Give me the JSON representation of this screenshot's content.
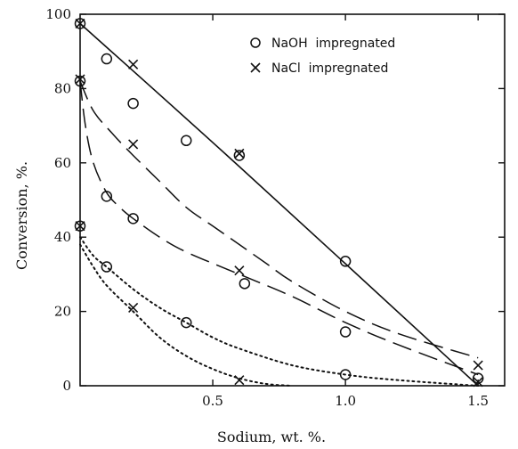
{
  "chart_data": {
    "type": "scatter",
    "title": "",
    "xlabel": "Sodium, wt. %.",
    "ylabel": "Conversion, %.",
    "xlim": [
      0,
      1.6
    ],
    "ylim": [
      0,
      100
    ],
    "xticks": [
      {
        "value": 0.5,
        "label": "0.5"
      },
      {
        "value": 1.0,
        "label": "1.0"
      },
      {
        "value": 1.5,
        "label": "1.5"
      }
    ],
    "yticks": [
      {
        "value": 0,
        "label": "0"
      },
      {
        "value": 20,
        "label": "20"
      },
      {
        "value": 40,
        "label": "40"
      },
      {
        "value": 60,
        "label": "60"
      },
      {
        "value": 80,
        "label": "80"
      },
      {
        "value": 100,
        "label": "100"
      }
    ],
    "grid": false,
    "legend_position": "top-right",
    "legend": [
      {
        "marker": "circle",
        "label": "NaOH  impregnated"
      },
      {
        "marker": "x",
        "label": "NaCl  impregnated"
      }
    ],
    "series": [
      {
        "marker": "circle",
        "points": [
          [
            0.0,
            97.5
          ],
          [
            0.1,
            88
          ],
          [
            0.2,
            76
          ],
          [
            0.4,
            66
          ],
          [
            0.6,
            62
          ],
          [
            1.0,
            33.5
          ],
          [
            1.5,
            2
          ],
          [
            0.1,
            51
          ],
          [
            0.2,
            45
          ],
          [
            0.62,
            27.5
          ],
          [
            1.0,
            14.5
          ],
          [
            0.1,
            32
          ],
          [
            0.4,
            17
          ],
          [
            1.0,
            3
          ],
          [
            0.0,
            82
          ],
          [
            0.0,
            43
          ]
        ]
      },
      {
        "marker": "x",
        "points": [
          [
            0.0,
            97.5
          ],
          [
            0.2,
            86.5
          ],
          [
            0.6,
            62.5
          ],
          [
            1.5,
            5.5
          ],
          [
            0.2,
            65
          ],
          [
            0.6,
            31
          ],
          [
            1.5,
            1
          ],
          [
            0.2,
            21
          ],
          [
            0.6,
            1.5
          ],
          [
            0.0,
            82.5
          ],
          [
            0.0,
            43
          ]
        ]
      }
    ],
    "curves": [
      {
        "style": "solid",
        "points": [
          [
            0,
            97.5
          ],
          [
            0.6,
            59
          ],
          [
            1.5,
            0
          ]
        ]
      },
      {
        "style": "dashed",
        "points": [
          [
            0,
            82
          ],
          [
            0.05,
            74
          ],
          [
            0.12,
            68
          ],
          [
            0.2,
            62
          ],
          [
            0.3,
            55
          ],
          [
            0.4,
            48
          ],
          [
            0.5,
            43
          ],
          [
            0.6,
            38
          ],
          [
            0.7,
            33
          ],
          [
            0.8,
            28
          ],
          [
            1.0,
            20
          ],
          [
            1.2,
            14
          ],
          [
            1.5,
            7.5
          ]
        ]
      },
      {
        "style": "dashed",
        "points": [
          [
            0,
            82
          ],
          [
            0.02,
            70
          ],
          [
            0.05,
            60
          ],
          [
            0.1,
            52
          ],
          [
            0.15,
            48
          ],
          [
            0.2,
            45
          ],
          [
            0.3,
            40
          ],
          [
            0.4,
            36
          ],
          [
            0.6,
            30
          ],
          [
            0.8,
            24
          ],
          [
            1.0,
            17
          ],
          [
            1.2,
            11
          ],
          [
            1.5,
            3
          ]
        ]
      },
      {
        "style": "dotted",
        "points": [
          [
            0,
            40
          ],
          [
            0.05,
            35
          ],
          [
            0.1,
            32
          ],
          [
            0.2,
            26
          ],
          [
            0.3,
            21
          ],
          [
            0.4,
            17
          ],
          [
            0.5,
            13
          ],
          [
            0.6,
            10
          ],
          [
            0.8,
            5.5
          ],
          [
            1.0,
            3
          ],
          [
            1.2,
            1.5
          ],
          [
            1.5,
            0
          ]
        ]
      },
      {
        "style": "dotted",
        "points": [
          [
            0,
            38
          ],
          [
            0.05,
            32
          ],
          [
            0.1,
            27
          ],
          [
            0.2,
            20
          ],
          [
            0.3,
            13
          ],
          [
            0.4,
            8
          ],
          [
            0.5,
            4.5
          ],
          [
            0.6,
            2
          ],
          [
            0.7,
            0.5
          ],
          [
            0.8,
            0
          ]
        ]
      }
    ]
  }
}
